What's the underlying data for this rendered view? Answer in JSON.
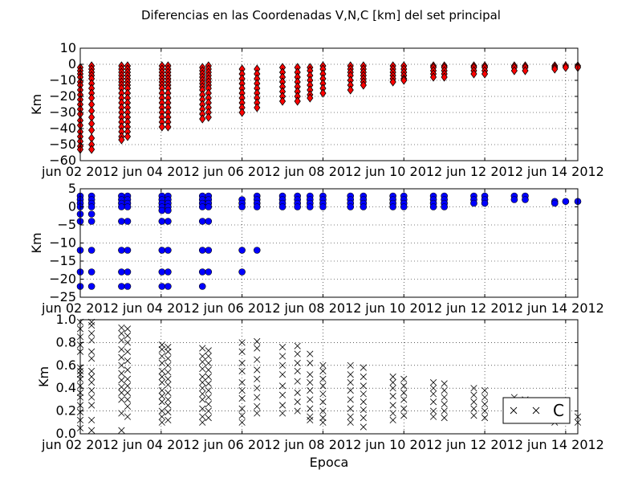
{
  "figure": {
    "title": "Diferencias en las Coordenadas V,N,C [km] del set principal",
    "xlabel": "Epoca",
    "background": "#ffffff"
  },
  "chart_data": [
    {
      "type": "scatter",
      "ylabel": "Km",
      "ylim": [
        -60,
        10
      ],
      "yticks": [
        10,
        0,
        -10,
        -20,
        -30,
        -40,
        -50,
        -60
      ],
      "xlim": [
        0,
        12.3
      ],
      "x_unit": "days from jun 02 2012",
      "xticks": [
        {
          "v": 0,
          "label": "jun 02 2012"
        },
        {
          "v": 2,
          "label": "jun 04 2012"
        },
        {
          "v": 4,
          "label": "jun 06 2012"
        },
        {
          "v": 6,
          "label": "jun 08 2012"
        },
        {
          "v": 8,
          "label": "jun 10 2012"
        },
        {
          "v": 10,
          "label": "jun 12 2012"
        },
        {
          "v": 12,
          "label": "jun 14 2012"
        }
      ],
      "grid": true,
      "marker": "diamond",
      "color": "#ff0000",
      "edge_color": "#000000",
      "series": [
        {
          "x": 0.0,
          "y": [
            -2,
            -4,
            -6,
            -8,
            -11,
            -13,
            -16,
            -19,
            -22,
            -25,
            -28,
            -31,
            -35,
            -38,
            -42,
            -45,
            -48,
            -51,
            -53
          ]
        },
        {
          "x": 0.28,
          "y": [
            -1,
            -3,
            -5,
            -7,
            -9,
            -12,
            -15,
            -18,
            -21,
            -25,
            -29,
            -33,
            -37,
            -41,
            -46,
            -50,
            -53
          ]
        },
        {
          "x": 1.02,
          "y": [
            -1,
            -3,
            -5,
            -7,
            -9,
            -11,
            -13,
            -15,
            -18,
            -21,
            -24,
            -27,
            -30,
            -33,
            -36,
            -39,
            -42,
            -45,
            -47
          ]
        },
        {
          "x": 1.17,
          "y": [
            -1,
            -3,
            -5,
            -7,
            -9,
            -11,
            -13,
            -15,
            -18,
            -21,
            -24,
            -27,
            -30,
            -33,
            -36,
            -39,
            -42,
            -45
          ]
        },
        {
          "x": 2.02,
          "y": [
            -1,
            -3,
            -5,
            -7,
            -9,
            -11,
            -13,
            -15,
            -18,
            -21,
            -24,
            -27,
            -30,
            -33,
            -36,
            -39
          ]
        },
        {
          "x": 2.17,
          "y": [
            -1,
            -3,
            -5,
            -7,
            -9,
            -11,
            -13,
            -15,
            -18,
            -21,
            -24,
            -27,
            -30,
            -33,
            -36,
            -39
          ]
        },
        {
          "x": 3.02,
          "y": [
            -2,
            -4,
            -6,
            -8,
            -10,
            -12,
            -14,
            -16,
            -19,
            -22,
            -25,
            -28,
            -31,
            -34
          ]
        },
        {
          "x": 3.17,
          "y": [
            -1,
            -3,
            -5,
            -7,
            -9,
            -11,
            -13,
            -15,
            -18,
            -21,
            -24,
            -27,
            -30,
            -33
          ]
        },
        {
          "x": 4.0,
          "y": [
            -3,
            -6,
            -9,
            -12,
            -15,
            -18,
            -21,
            -24,
            -27,
            -30
          ]
        },
        {
          "x": 4.37,
          "y": [
            -3,
            -6,
            -9,
            -12,
            -15,
            -18,
            -21,
            -24,
            -27
          ]
        },
        {
          "x": 5.0,
          "y": [
            -2,
            -5,
            -8,
            -11,
            -14,
            -17,
            -20,
            -23
          ]
        },
        {
          "x": 5.37,
          "y": [
            -2,
            -5,
            -8,
            -11,
            -14,
            -17,
            -20,
            -23
          ]
        },
        {
          "x": 5.68,
          "y": [
            -2,
            -4,
            -7,
            -10,
            -13,
            -16,
            -19,
            -21
          ]
        },
        {
          "x": 6.0,
          "y": [
            -1,
            -3,
            -6,
            -9,
            -12,
            -15,
            -18
          ]
        },
        {
          "x": 6.68,
          "y": [
            -1,
            -3,
            -5,
            -7,
            -10,
            -13,
            -16
          ]
        },
        {
          "x": 7.0,
          "y": [
            -1,
            -3,
            -5,
            -7,
            -9,
            -11,
            -13
          ]
        },
        {
          "x": 7.73,
          "y": [
            -1,
            -3,
            -5,
            -7,
            -9,
            -11
          ]
        },
        {
          "x": 8.0,
          "y": [
            -1,
            -3,
            -5,
            -7,
            -9,
            -10
          ]
        },
        {
          "x": 8.73,
          "y": [
            -1,
            -2,
            -4,
            -6,
            -8
          ]
        },
        {
          "x": 9.0,
          "y": [
            -1,
            -2,
            -4,
            -6,
            -8
          ]
        },
        {
          "x": 9.73,
          "y": [
            -1,
            -2,
            -4,
            -6
          ]
        },
        {
          "x": 10.0,
          "y": [
            -1,
            -2,
            -4,
            -6
          ]
        },
        {
          "x": 10.73,
          "y": [
            -1,
            -2,
            -4
          ]
        },
        {
          "x": 11.0,
          "y": [
            -1,
            -2,
            -4
          ]
        },
        {
          "x": 11.73,
          "y": [
            -1,
            -2,
            -3
          ]
        },
        {
          "x": 12.0,
          "y": [
            -1,
            -2
          ]
        },
        {
          "x": 12.3,
          "y": [
            -1,
            -2
          ]
        }
      ]
    },
    {
      "type": "scatter",
      "ylabel": "Km",
      "ylim": [
        -25,
        5
      ],
      "yticks": [
        5,
        0,
        -5,
        -10,
        -15,
        -20,
        -25
      ],
      "xlim": [
        0,
        12.3
      ],
      "grid": true,
      "marker": "circle",
      "color": "#0000ff",
      "edge_color": "#000000",
      "series": [
        {
          "x": 0.0,
          "y": [
            3,
            2,
            1,
            0,
            -2,
            -4,
            -12,
            -18,
            -22
          ]
        },
        {
          "x": 0.28,
          "y": [
            3,
            2,
            1,
            0,
            -2,
            -4,
            -12,
            -18,
            -22
          ]
        },
        {
          "x": 1.02,
          "y": [
            3,
            2,
            1,
            0,
            -4,
            -12,
            -18,
            -22
          ]
        },
        {
          "x": 1.17,
          "y": [
            3,
            2,
            1,
            0,
            -4,
            -12,
            -18,
            -22
          ]
        },
        {
          "x": 2.02,
          "y": [
            3,
            2,
            1,
            0,
            -1,
            -4,
            -12,
            -18,
            -22
          ]
        },
        {
          "x": 2.17,
          "y": [
            3,
            2,
            1,
            0,
            -1,
            -4,
            -12,
            -18,
            -22
          ]
        },
        {
          "x": 3.02,
          "y": [
            3,
            2,
            1,
            0,
            -4,
            -12,
            -18,
            -22
          ]
        },
        {
          "x": 3.17,
          "y": [
            3,
            2,
            1,
            0,
            -4,
            -12,
            -18
          ]
        },
        {
          "x": 4.0,
          "y": [
            2,
            1,
            0,
            -12,
            -18
          ]
        },
        {
          "x": 4.37,
          "y": [
            3,
            2,
            1,
            0,
            -12
          ]
        },
        {
          "x": 5.0,
          "y": [
            3,
            2,
            1,
            0
          ]
        },
        {
          "x": 5.37,
          "y": [
            3,
            2,
            1,
            0
          ]
        },
        {
          "x": 5.68,
          "y": [
            3,
            2,
            1,
            0
          ]
        },
        {
          "x": 6.0,
          "y": [
            3,
            2,
            1,
            0
          ]
        },
        {
          "x": 6.68,
          "y": [
            3,
            2,
            1,
            0
          ]
        },
        {
          "x": 7.0,
          "y": [
            3,
            2,
            1,
            0
          ]
        },
        {
          "x": 7.73,
          "y": [
            3,
            2,
            1,
            0
          ]
        },
        {
          "x": 8.0,
          "y": [
            3,
            2,
            1,
            0
          ]
        },
        {
          "x": 8.73,
          "y": [
            3,
            2,
            1,
            0
          ]
        },
        {
          "x": 9.0,
          "y": [
            3,
            2,
            1,
            0
          ]
        },
        {
          "x": 9.73,
          "y": [
            3,
            2,
            1
          ]
        },
        {
          "x": 10.0,
          "y": [
            3,
            2,
            1
          ]
        },
        {
          "x": 10.73,
          "y": [
            3,
            2
          ]
        },
        {
          "x": 11.0,
          "y": [
            3,
            2
          ]
        },
        {
          "x": 11.73,
          "y": [
            1.5,
            1
          ]
        },
        {
          "x": 12.0,
          "y": [
            1.5
          ]
        },
        {
          "x": 12.3,
          "y": [
            1.5
          ]
        }
      ]
    },
    {
      "type": "scatter",
      "ylabel": "Km",
      "ylim": [
        0,
        1.0
      ],
      "yticks": [
        1.0,
        0.8,
        0.6,
        0.4,
        0.2,
        0.0
      ],
      "ytick_labels": [
        "1.0",
        "0.8",
        "0.6",
        "0.4",
        "0.2",
        "0.0"
      ],
      "xlim": [
        0,
        12.3
      ],
      "grid": true,
      "marker": "x",
      "color": "#000000",
      "legend": {
        "label": "C",
        "loc": "lower right"
      },
      "series": [
        {
          "x": 0.0,
          "y": [
            0.98,
            0.92,
            0.85,
            0.78,
            0.72,
            0.58,
            0.55,
            0.52,
            0.48,
            0.42,
            0.36,
            0.32,
            0.25,
            0.19,
            0.12,
            0.05
          ]
        },
        {
          "x": 0.28,
          "y": [
            0.98,
            0.95,
            0.88,
            0.82,
            0.72,
            0.66,
            0.55,
            0.5,
            0.45,
            0.38,
            0.32,
            0.25,
            0.12,
            0.03
          ]
        },
        {
          "x": 1.02,
          "y": [
            0.93,
            0.88,
            0.82,
            0.74,
            0.67,
            0.6,
            0.53,
            0.47,
            0.41,
            0.36,
            0.3,
            0.18,
            0.03
          ]
        },
        {
          "x": 1.17,
          "y": [
            0.92,
            0.86,
            0.8,
            0.72,
            0.64,
            0.56,
            0.48,
            0.42,
            0.36,
            0.3,
            0.24,
            0.15
          ]
        },
        {
          "x": 2.02,
          "y": [
            0.78,
            0.74,
            0.68,
            0.62,
            0.55,
            0.5,
            0.45,
            0.38,
            0.33,
            0.28,
            0.2,
            0.15,
            0.1
          ]
        },
        {
          "x": 2.17,
          "y": [
            0.76,
            0.72,
            0.66,
            0.6,
            0.54,
            0.48,
            0.43,
            0.36,
            0.3,
            0.25,
            0.19,
            0.12
          ]
        },
        {
          "x": 3.02,
          "y": [
            0.75,
            0.68,
            0.63,
            0.57,
            0.5,
            0.45,
            0.4,
            0.35,
            0.3,
            0.22,
            0.15,
            0.1
          ]
        },
        {
          "x": 3.17,
          "y": [
            0.73,
            0.68,
            0.62,
            0.56,
            0.5,
            0.44,
            0.38,
            0.32,
            0.26,
            0.2,
            0.14
          ]
        },
        {
          "x": 4.0,
          "y": [
            0.8,
            0.72,
            0.62,
            0.55,
            0.45,
            0.38,
            0.31,
            0.22,
            0.16,
            0.1
          ]
        },
        {
          "x": 4.37,
          "y": [
            0.81,
            0.75,
            0.65,
            0.56,
            0.48,
            0.4,
            0.32,
            0.24,
            0.18
          ]
        },
        {
          "x": 5.0,
          "y": [
            0.76,
            0.68,
            0.6,
            0.52,
            0.42,
            0.34,
            0.25,
            0.18
          ]
        },
        {
          "x": 5.37,
          "y": [
            0.77,
            0.7,
            0.62,
            0.55,
            0.46,
            0.36,
            0.28,
            0.2
          ]
        },
        {
          "x": 5.68,
          "y": [
            0.7,
            0.62,
            0.52,
            0.45,
            0.38,
            0.3,
            0.22,
            0.15,
            0.12
          ]
        },
        {
          "x": 6.0,
          "y": [
            0.6,
            0.55,
            0.48,
            0.42,
            0.35,
            0.28,
            0.2,
            0.14,
            0.1
          ]
        },
        {
          "x": 6.68,
          "y": [
            0.6,
            0.52,
            0.45,
            0.38,
            0.3,
            0.22,
            0.15,
            0.1
          ]
        },
        {
          "x": 7.0,
          "y": [
            0.58,
            0.5,
            0.42,
            0.35,
            0.28,
            0.21,
            0.14,
            0.06
          ]
        },
        {
          "x": 7.73,
          "y": [
            0.5,
            0.45,
            0.4,
            0.33,
            0.25,
            0.18,
            0.12
          ]
        },
        {
          "x": 8.0,
          "y": [
            0.48,
            0.42,
            0.36,
            0.3,
            0.22,
            0.16
          ]
        },
        {
          "x": 8.73,
          "y": [
            0.45,
            0.4,
            0.35,
            0.28,
            0.2,
            0.15
          ]
        },
        {
          "x": 9.0,
          "y": [
            0.44,
            0.38,
            0.32,
            0.26,
            0.2,
            0.14
          ]
        },
        {
          "x": 9.73,
          "y": [
            0.4,
            0.34,
            0.28,
            0.22,
            0.16
          ]
        },
        {
          "x": 10.0,
          "y": [
            0.38,
            0.32,
            0.26,
            0.2,
            0.14
          ]
        },
        {
          "x": 10.73,
          "y": [
            0.32,
            0.26,
            0.2,
            0.14
          ]
        },
        {
          "x": 11.0,
          "y": [
            0.3,
            0.24,
            0.18,
            0.12
          ]
        },
        {
          "x": 11.73,
          "y": [
            0.22,
            0.16,
            0.1
          ]
        },
        {
          "x": 12.0,
          "y": [
            0.18,
            0.12
          ]
        },
        {
          "x": 12.3,
          "y": [
            0.15,
            0.1
          ]
        }
      ]
    }
  ]
}
